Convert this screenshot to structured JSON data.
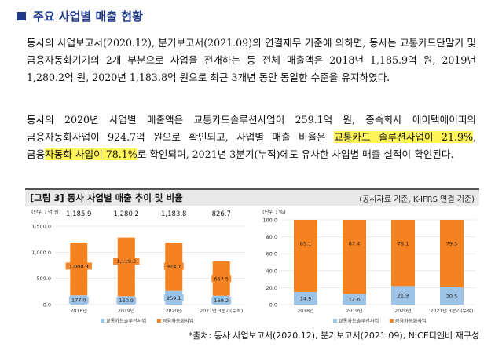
{
  "section": {
    "title": "주요 사업별 매출 현황"
  },
  "paragraphs": {
    "p1": "동사의 사업보고서(2020.12), 분기보고서(2021.09)의 연결재무 기준에 의하면, 동사는 교통카드단말기 및 금융자동화기기의 2개 부분으로 사업을 전개하는 등 전체 매출액은 2018년 1,185.9억 원, 2019년 1,280.2억 원, 2020년 1,183.8억 원으로 최근 3개년 동안 동일한 수준을 유지하였다.",
    "p2_a": "동사의 2020년 사업별 매출액은 교통카드솔루션사업이 259.1억 원, 종속회사 에이텍에이피의 금융자동화사업이 924.7억 원으로 확인되고, 사업별 매출 비율은 ",
    "p2_hl1": "교통카드 솔루션사업이 21.9%",
    "p2_b": ", 금융",
    "p2_hl2": "자동화 사업이 78.1%",
    "p2_c": "로 확인되며, 2021년 3분기(누적)에도 유사한 사업별 매출 실적이 확인된다."
  },
  "figure": {
    "title": "[그림 3] 동사 사업별 매출 추이 및 비율",
    "source": "(공시자료 기준, K-IFRS 연결 기준)"
  },
  "footer": "*출처: 동사 사업보고서(2020.12), 분기보고서(2021.09), NICE디앤비 재구성",
  "colors": {
    "blue": "#9dc3e6",
    "orange": "#f58220",
    "title_blue": "#1f3a8a"
  },
  "chart_data": [
    {
      "type": "bar",
      "stacked": true,
      "unit_label": "(단위 : 억 원)",
      "categories": [
        "2018년",
        "2019년",
        "2020년",
        "2021년 3분기(누적)"
      ],
      "totals": [
        "1,185.9",
        "1,280.2",
        "1,183.8",
        "826.7"
      ],
      "series": [
        {
          "name": "교통카드솔루션사업",
          "values": [
            177.0,
            160.9,
            259.1,
            169.2
          ],
          "labels": [
            "177.0",
            "160.9",
            "259.1",
            "169.2"
          ]
        },
        {
          "name": "금융자동화사업",
          "values": [
            1008.9,
            1119.3,
            924.7,
            657.5
          ],
          "labels": [
            "1,008.9",
            "1,119.3",
            "924.7",
            "657.5"
          ]
        }
      ],
      "ylim": [
        0,
        1500
      ],
      "yticks": [
        "0.0",
        "500.0",
        "1,000.0",
        "1,500.0"
      ],
      "ytick_values": [
        0,
        500,
        1000,
        1500
      ],
      "legend": "bottom"
    },
    {
      "type": "bar",
      "stacked": true,
      "unit_label": "(단위 : %)",
      "categories": [
        "2018년",
        "2019년",
        "2020년",
        "2021년 3분기(누적)"
      ],
      "series": [
        {
          "name": "교통카드솔루션사업",
          "values": [
            14.9,
            12.6,
            21.9,
            20.5
          ],
          "labels": [
            "14.9",
            "12.6",
            "21.9",
            "20.5"
          ]
        },
        {
          "name": "금융자동화사업",
          "values": [
            85.1,
            87.4,
            78.1,
            79.5
          ],
          "labels": [
            "85.1",
            "87.4",
            "78.1",
            "79.5"
          ]
        }
      ],
      "ylim": [
        0,
        100
      ],
      "yticks": [
        "0.0",
        "20.0",
        "40.0",
        "60.0",
        "80.0",
        "100.0"
      ],
      "ytick_values": [
        0,
        20,
        40,
        60,
        80,
        100
      ],
      "legend": "bottom"
    }
  ]
}
